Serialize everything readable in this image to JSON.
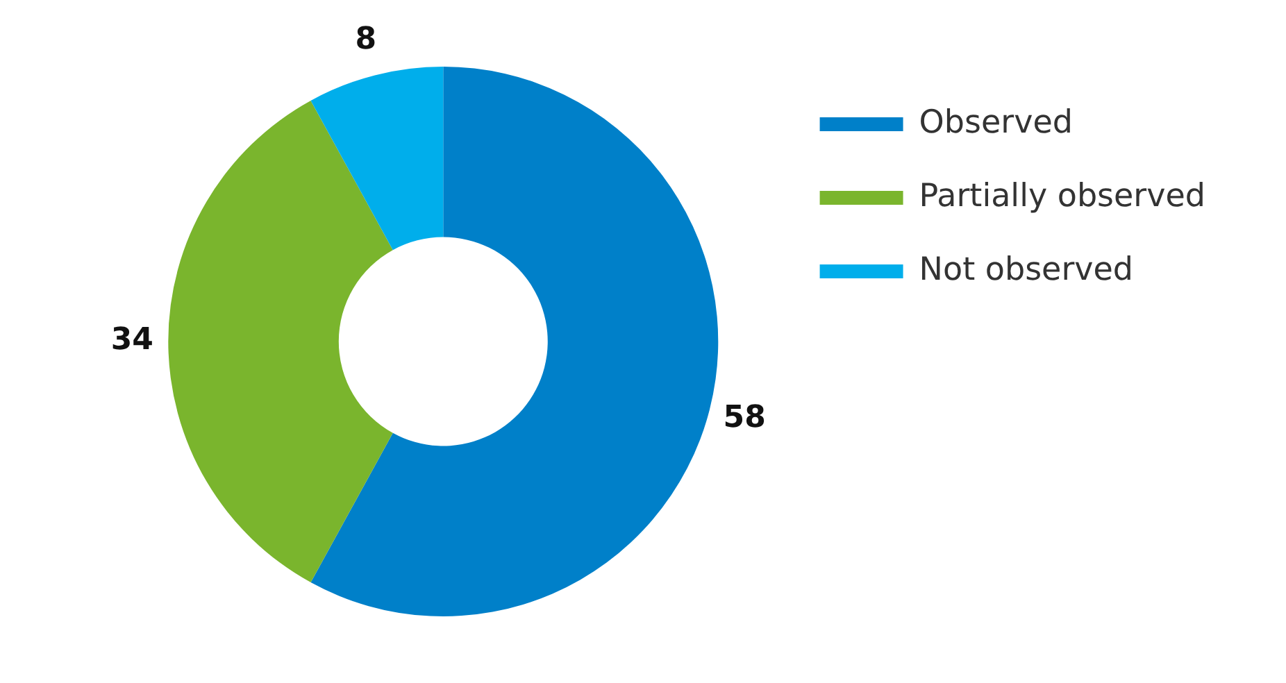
{
  "chart_data": {
    "type": "donut",
    "categories": [
      "Observed",
      "Partially observed",
      "Not observed"
    ],
    "values": [
      58,
      34,
      8
    ],
    "colors": [
      "#0080c9",
      "#7ab52d",
      "#00aeeb"
    ],
    "data_labels": true,
    "legend": "right"
  }
}
